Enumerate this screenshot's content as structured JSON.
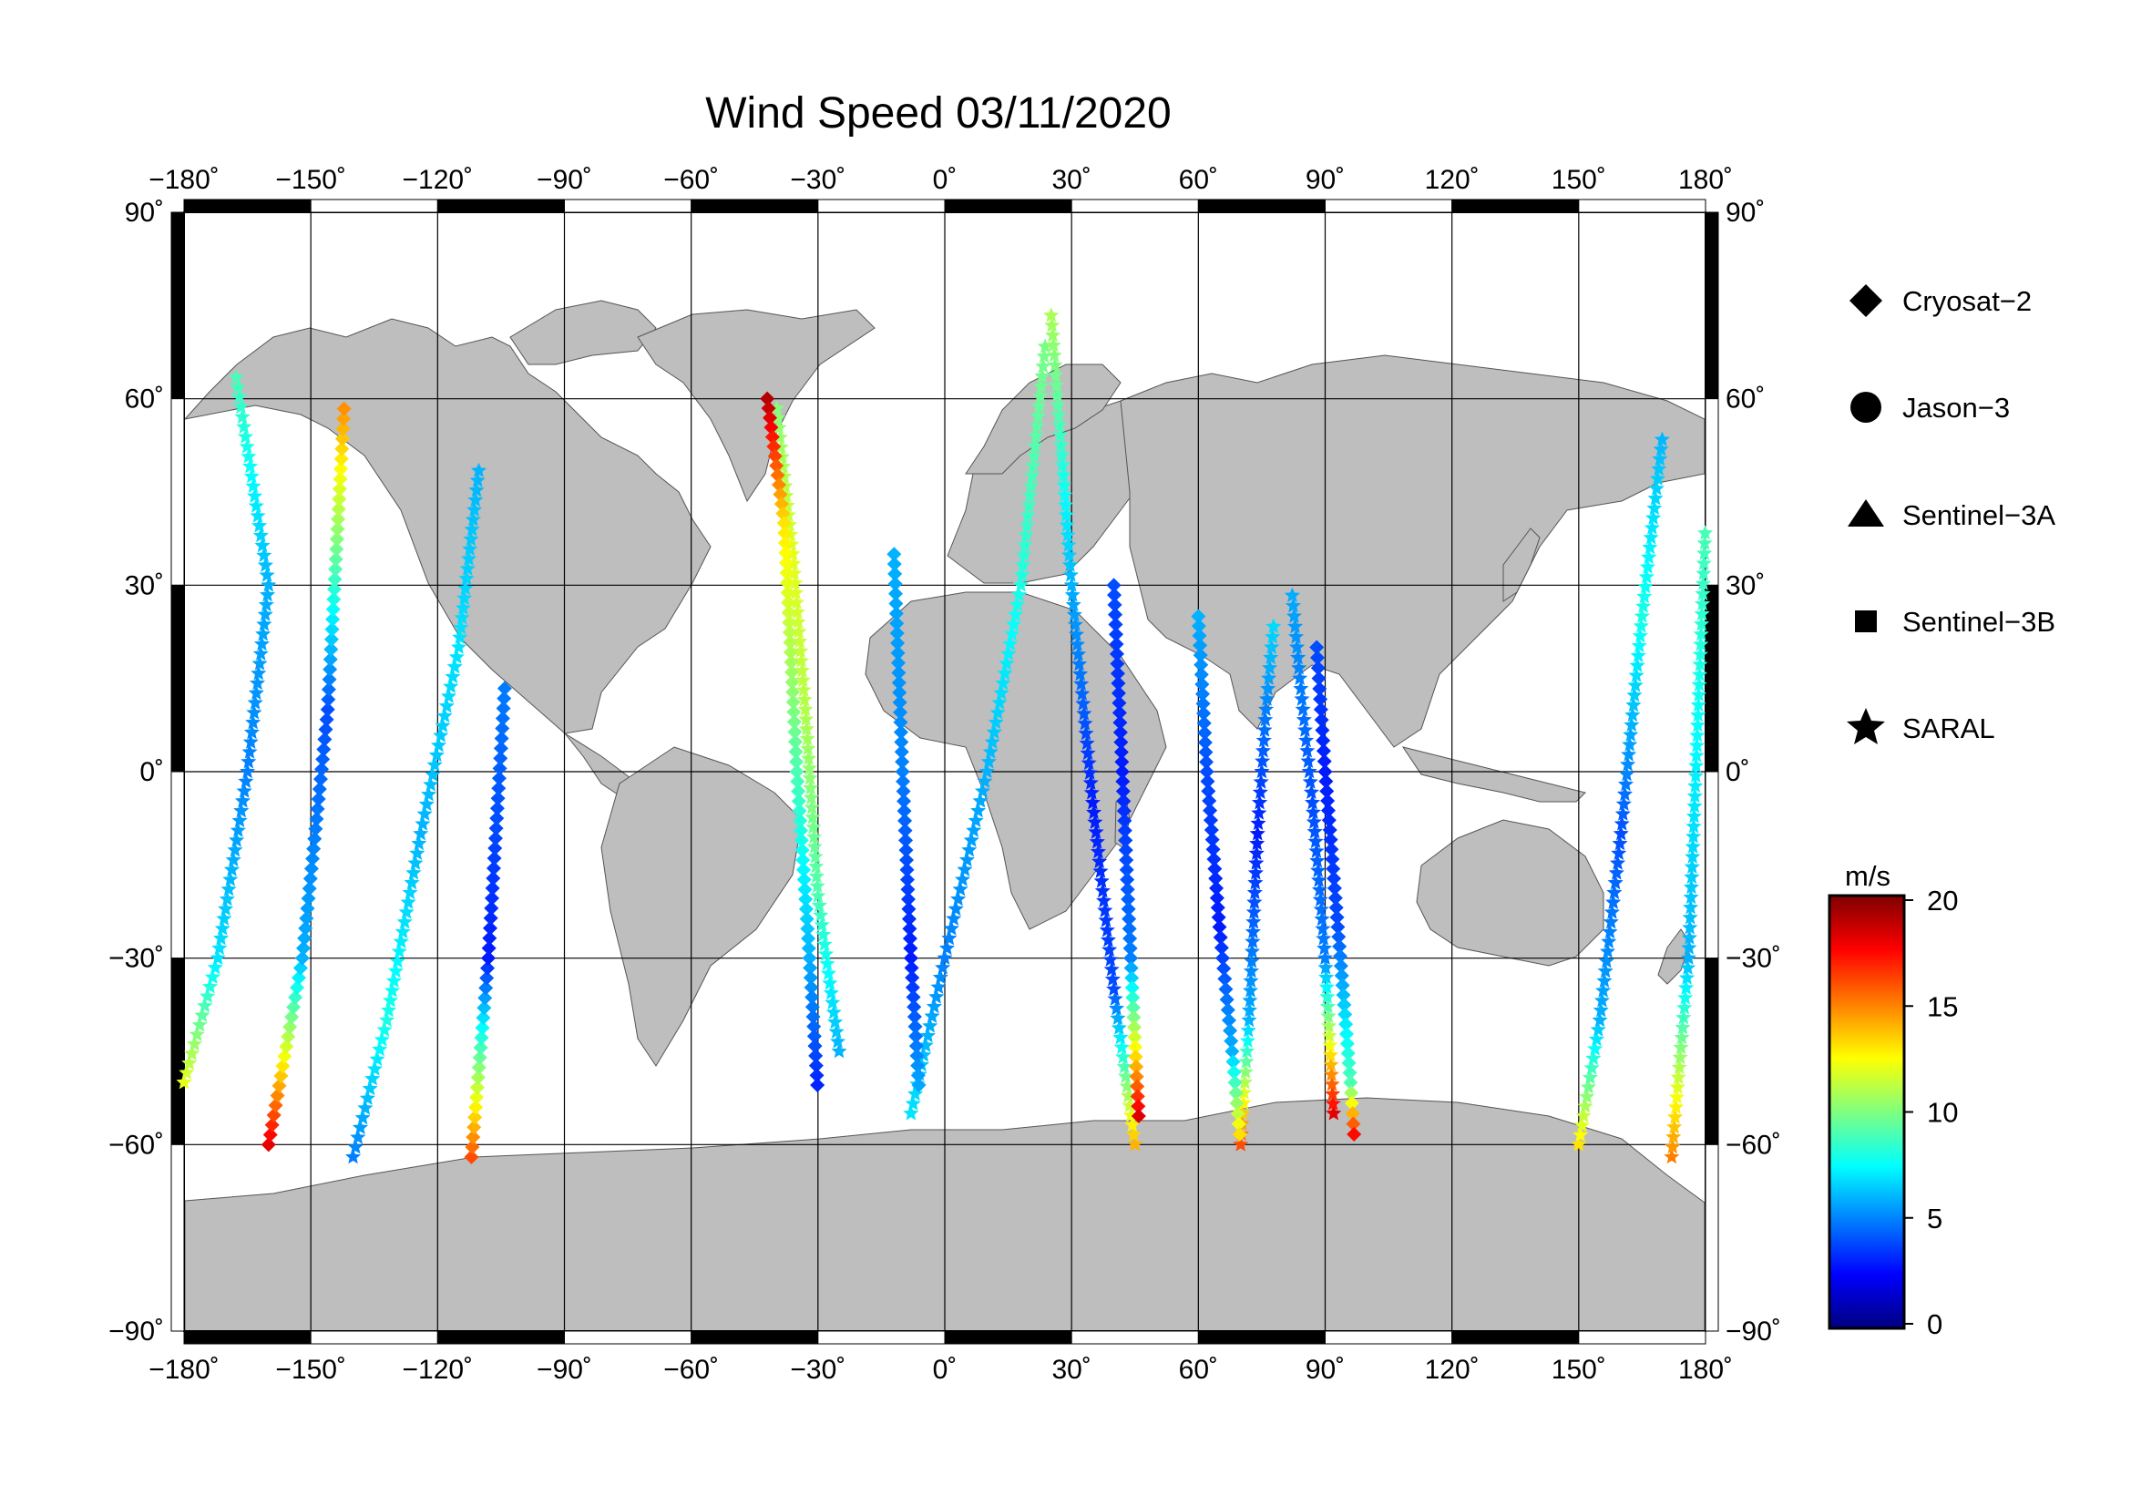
{
  "title": "Wind Speed 03/11/2020",
  "colors": {
    "land": "#bebebe",
    "ocean": "#ffffff",
    "grid": "#000000",
    "frame": "#000000"
  },
  "axes": {
    "lon_ticks": [
      "−180˚",
      "−150˚",
      "−120˚",
      "−90˚",
      "−60˚",
      "−30˚",
      "0˚",
      "30˚",
      "60˚",
      "90˚",
      "120˚",
      "150˚",
      "180˚"
    ],
    "lat_ticks_left": [
      "90˚",
      "60˚",
      "30˚",
      "0˚",
      "−30˚",
      "−60˚",
      "−90˚"
    ],
    "lat_ticks_right": [
      "90˚",
      "60˚",
      "30˚",
      "0˚",
      "−30˚",
      "−60˚",
      "−90˚"
    ]
  },
  "legend": {
    "items": [
      {
        "label": "Cryosat−2",
        "icon": "diamond-icon"
      },
      {
        "label": "Jason−3",
        "icon": "circle-icon"
      },
      {
        "label": "Sentinel−3A",
        "icon": "triangle-icon"
      },
      {
        "label": "Sentinel−3B",
        "icon": "square-icon"
      },
      {
        "label": "SARAL",
        "icon": "star-icon"
      }
    ]
  },
  "colorbar": {
    "unit": "m/s",
    "ticks": [
      "20",
      "15",
      "10",
      "5",
      "0"
    ],
    "range": [
      0,
      20
    ],
    "colors": [
      "#00007f",
      "#0000ff",
      "#007fff",
      "#00ffff",
      "#7fff7f",
      "#ffff00",
      "#ff7f00",
      "#ff0000",
      "#7f0000"
    ]
  },
  "chart_data": {
    "type": "scatter",
    "title": "Wind Speed 03/11/2020",
    "xlim": [
      -180,
      180
    ],
    "ylim": [
      -90,
      90
    ],
    "projection": "equirectangular",
    "value_unit": "m/s",
    "series": [
      {
        "name": "SARAL",
        "marker": "star",
        "tracks": [
          {
            "lon": [
              -180,
              -172,
              -165,
              -160,
              -168
            ],
            "lat": [
              -50,
              -30,
              0,
              30,
              65
            ],
            "speed": [
              12,
              7,
              5,
              6,
              9
            ]
          },
          {
            "lon": [
              -140,
              -132,
              -124,
              -115,
              -110
            ],
            "lat": [
              -62,
              -40,
              -10,
              20,
              50
            ],
            "speed": [
              5,
              8,
              6,
              7,
              6
            ]
          },
          {
            "lon": [
              -25,
              -30,
              -33,
              -36,
              -40
            ],
            "lat": [
              -45,
              -20,
              10,
              35,
              60
            ],
            "speed": [
              6,
              9,
              11,
              12,
              10
            ]
          },
          {
            "lon": [
              -8,
              0,
              10,
              18,
              24
            ],
            "lat": [
              -55,
              -30,
              0,
              30,
              70
            ],
            "speed": [
              7,
              5,
              6,
              8,
              10
            ]
          },
          {
            "lon": [
              45,
              40,
              35,
              30,
              25
            ],
            "lat": [
              -60,
              -35,
              -5,
              30,
              75
            ],
            "speed": [
              14,
              4,
              3,
              6,
              11
            ]
          },
          {
            "lon": [
              70,
              72,
              74,
              76,
              78
            ],
            "lat": [
              -60,
              -40,
              -10,
              10,
              25
            ],
            "speed": [
              16,
              6,
              3,
              5,
              7
            ]
          },
          {
            "lon": [
              92,
              90,
              87,
              84,
              82
            ],
            "lat": [
              -55,
              -30,
              -5,
              15,
              30
            ],
            "speed": [
              18,
              5,
              4,
              5,
              6
            ]
          },
          {
            "lon": [
              150,
              155,
              160,
              165,
              170
            ],
            "lat": [
              -60,
              -40,
              -10,
              25,
              55
            ],
            "speed": [
              13,
              6,
              4,
              8,
              6
            ]
          },
          {
            "lon": [
              172,
              176,
              180
            ],
            "lat": [
              -62,
              -30,
              40
            ],
            "speed": [
              15,
              6,
              9
            ]
          }
        ]
      },
      {
        "name": "Cryosat−2",
        "marker": "diamond",
        "tracks": [
          {
            "lon": [
              -160,
              -152,
              -146,
              -142
            ],
            "lat": [
              -60,
              -30,
              10,
              60
            ],
            "speed": [
              18,
              6,
              4,
              15
            ]
          },
          {
            "lon": [
              -112,
              -108,
              -104
            ],
            "lat": [
              -62,
              -30,
              15
            ],
            "speed": [
              16,
              3,
              5
            ]
          },
          {
            "lon": [
              -42,
              -38,
              -35,
              -32,
              -30
            ],
            "lat": [
              60,
              40,
              0,
              -30,
              -52
            ],
            "speed": [
              19,
              13,
              9,
              6,
              3
            ]
          },
          {
            "lon": [
              -12,
              -10,
              -8,
              -6
            ],
            "lat": [
              35,
              0,
              -30,
              -52
            ],
            "speed": [
              6,
              5,
              3,
              6
            ]
          },
          {
            "lon": [
              40,
              42,
              44,
              46
            ],
            "lat": [
              30,
              0,
              -30,
              -57
            ],
            "speed": [
              4,
              3,
              5,
              19
            ]
          },
          {
            "lon": [
              60,
              62,
              65,
              68,
              70
            ],
            "lat": [
              25,
              0,
              -25,
              -45,
              -60
            ],
            "speed": [
              6,
              4,
              3,
              6,
              14
            ]
          },
          {
            "lon": [
              88,
              90,
              93,
              96,
              97
            ],
            "lat": [
              20,
              0,
              -25,
              -50,
              -60
            ],
            "speed": [
              4,
              3,
              4,
              9,
              19
            ]
          }
        ]
      }
    ]
  }
}
